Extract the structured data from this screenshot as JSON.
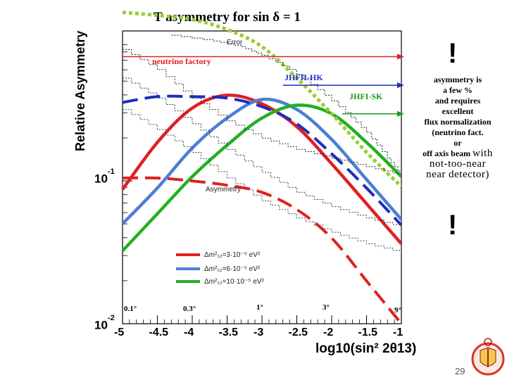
{
  "title": "T asymmetry for sin δ = 1",
  "chart_data": {
    "type": "line",
    "xlabel": "log10(sin² 2θ13)",
    "ylabel": "Relative Asymmetry",
    "xlim": [
      -5,
      -1
    ],
    "ylim_log10": [
      -2,
      0.05
    ],
    "x_ticks": [
      "-5",
      "-4.5",
      "-4",
      "-3.5",
      "-3",
      "-2.5",
      "-2",
      "-1.5",
      "-1"
    ],
    "y_ticks": [
      {
        "base": "10",
        "exp": "-1"
      },
      {
        "base": "10",
        "exp": "-2"
      }
    ],
    "angle_labels": [
      "0.1°",
      "0.3°",
      "1°",
      "3°",
      "9°"
    ],
    "beam_labels": [
      {
        "name": "neutrino factory",
        "color": "#e02020",
        "x_start": -5,
        "x_end": -1,
        "log10_y": -0.13
      },
      {
        "name": "JHFII-HK",
        "color": "#1a2fbf",
        "x_start": -2.7,
        "x_end": -1,
        "log10_y": -0.33
      },
      {
        "name": "JHFI-SK",
        "color": "#1a9a1a",
        "x_start": -1.85,
        "x_end": -1,
        "log10_y": -0.53
      }
    ],
    "annotations": [
      "Error",
      "Asymmetry"
    ],
    "legend": {
      "entries": [
        {
          "text": "Δm²₁₂=3·10⁻⁵ eV²",
          "color": "#e02020"
        },
        {
          "text": "Δm²₁₂=6·10⁻⁵ eV²",
          "color": "#4a7fd6"
        },
        {
          "text": "Δm²₁₂=10·10⁻⁵ eV²",
          "color": "#22b022"
        }
      ]
    },
    "series": [
      {
        "style": "solid",
        "color": "#e02020",
        "x": [
          -5,
          -4.5,
          -4,
          -3.5,
          -3,
          -2.5,
          -2,
          -1.5,
          -1
        ],
        "log10_y": [
          -1.06,
          -0.73,
          -0.49,
          -0.4,
          -0.46,
          -0.62,
          -0.88,
          -1.16,
          -1.44
        ]
      },
      {
        "style": "solid",
        "color": "#4a7fd6",
        "x": [
          -5,
          -4.5,
          -4,
          -3.5,
          -3,
          -2.5,
          -2,
          -1.5,
          -1
        ],
        "log10_y": [
          -1.3,
          -1.05,
          -0.77,
          -0.56,
          -0.43,
          -0.5,
          -0.71,
          -0.99,
          -1.27
        ]
      },
      {
        "style": "solid",
        "color": "#22b022",
        "x": [
          -5,
          -4.5,
          -4,
          -3.5,
          -3,
          -2.5,
          -2,
          -1.5,
          -1
        ],
        "log10_y": [
          -1.49,
          -1.23,
          -0.97,
          -0.75,
          -0.56,
          -0.47,
          -0.53,
          -0.73,
          -0.97
        ]
      },
      {
        "style": "dashed",
        "color": "#e02020",
        "x": [
          -5,
          -4.5,
          -4,
          -3.5,
          -3,
          -2.5,
          -2,
          -1.5,
          -1
        ],
        "log10_y": [
          -0.98,
          -0.98,
          -1.0,
          -1.03,
          -1.08,
          -1.2,
          -1.4,
          -1.7,
          -2.0
        ]
      },
      {
        "style": "dashed",
        "color": "#1a2fbf",
        "x": [
          -5,
          -4.5,
          -4,
          -3.5,
          -3,
          -2.5,
          -2,
          -1.5,
          -1
        ],
        "log10_y": [
          -0.45,
          -0.41,
          -0.41,
          -0.42,
          -0.48,
          -0.6,
          -0.81,
          -1.05,
          -1.31
        ]
      },
      {
        "style": "dotted",
        "color": "#9acd32",
        "x": [
          -5,
          -4.5,
          -4,
          -3.5,
          -3,
          -2.5,
          -2,
          -1.5,
          -1
        ],
        "log10_y": [
          0.18,
          0.16,
          0.13,
          0.06,
          -0.06,
          -0.28,
          -0.53,
          -0.8,
          -1.04
        ]
      },
      {
        "style": "step",
        "color": "#111111",
        "x": [
          -4.3,
          -3.7,
          -3.3,
          -3,
          -2.6,
          -2.2,
          -1.8,
          -1.5,
          -1.2,
          -1
        ],
        "log10_y": [
          0.02,
          -0.02,
          -0.06,
          -0.12,
          -0.22,
          -0.36,
          -0.52,
          -0.66,
          -0.84,
          -0.96
        ]
      },
      {
        "style": "step",
        "color": "#222222",
        "x": [
          -5,
          -4.5,
          -4,
          -3.5,
          -3,
          -2.5,
          -2,
          -1.5,
          -1
        ],
        "log10_y": [
          -0.08,
          -0.22,
          -0.42,
          -0.58,
          -0.7,
          -0.78,
          -0.84,
          -0.9,
          -0.96
        ]
      },
      {
        "style": "step",
        "color": "#333333",
        "x": [
          -5,
          -4.5,
          -4,
          -3.5,
          -3,
          -2.5,
          -2,
          -1.5,
          -1
        ],
        "log10_y": [
          -0.28,
          -0.42,
          -0.6,
          -0.78,
          -0.94,
          -1.08,
          -1.18,
          -1.26,
          -1.32
        ]
      },
      {
        "style": "step",
        "color": "#444444",
        "x": [
          -5,
          -4.5,
          -4,
          -3.5,
          -3,
          -2.5,
          -2,
          -1.5,
          -1
        ],
        "log10_y": [
          -0.5,
          -0.64,
          -0.8,
          -0.98,
          -1.14,
          -1.26,
          -1.36,
          -1.44,
          -1.5
        ]
      }
    ]
  },
  "note": {
    "lines": [
      "asymmetry is",
      "a few %",
      "and requires",
      "excellent",
      "flux normalization",
      "(neutrino fact.",
      "or"
    ],
    "line8a": "off axis beam ",
    "line8b": "with",
    "line9": "not-too-near",
    "line10": "near detector)"
  },
  "exclaim": "!",
  "page_number": "29"
}
